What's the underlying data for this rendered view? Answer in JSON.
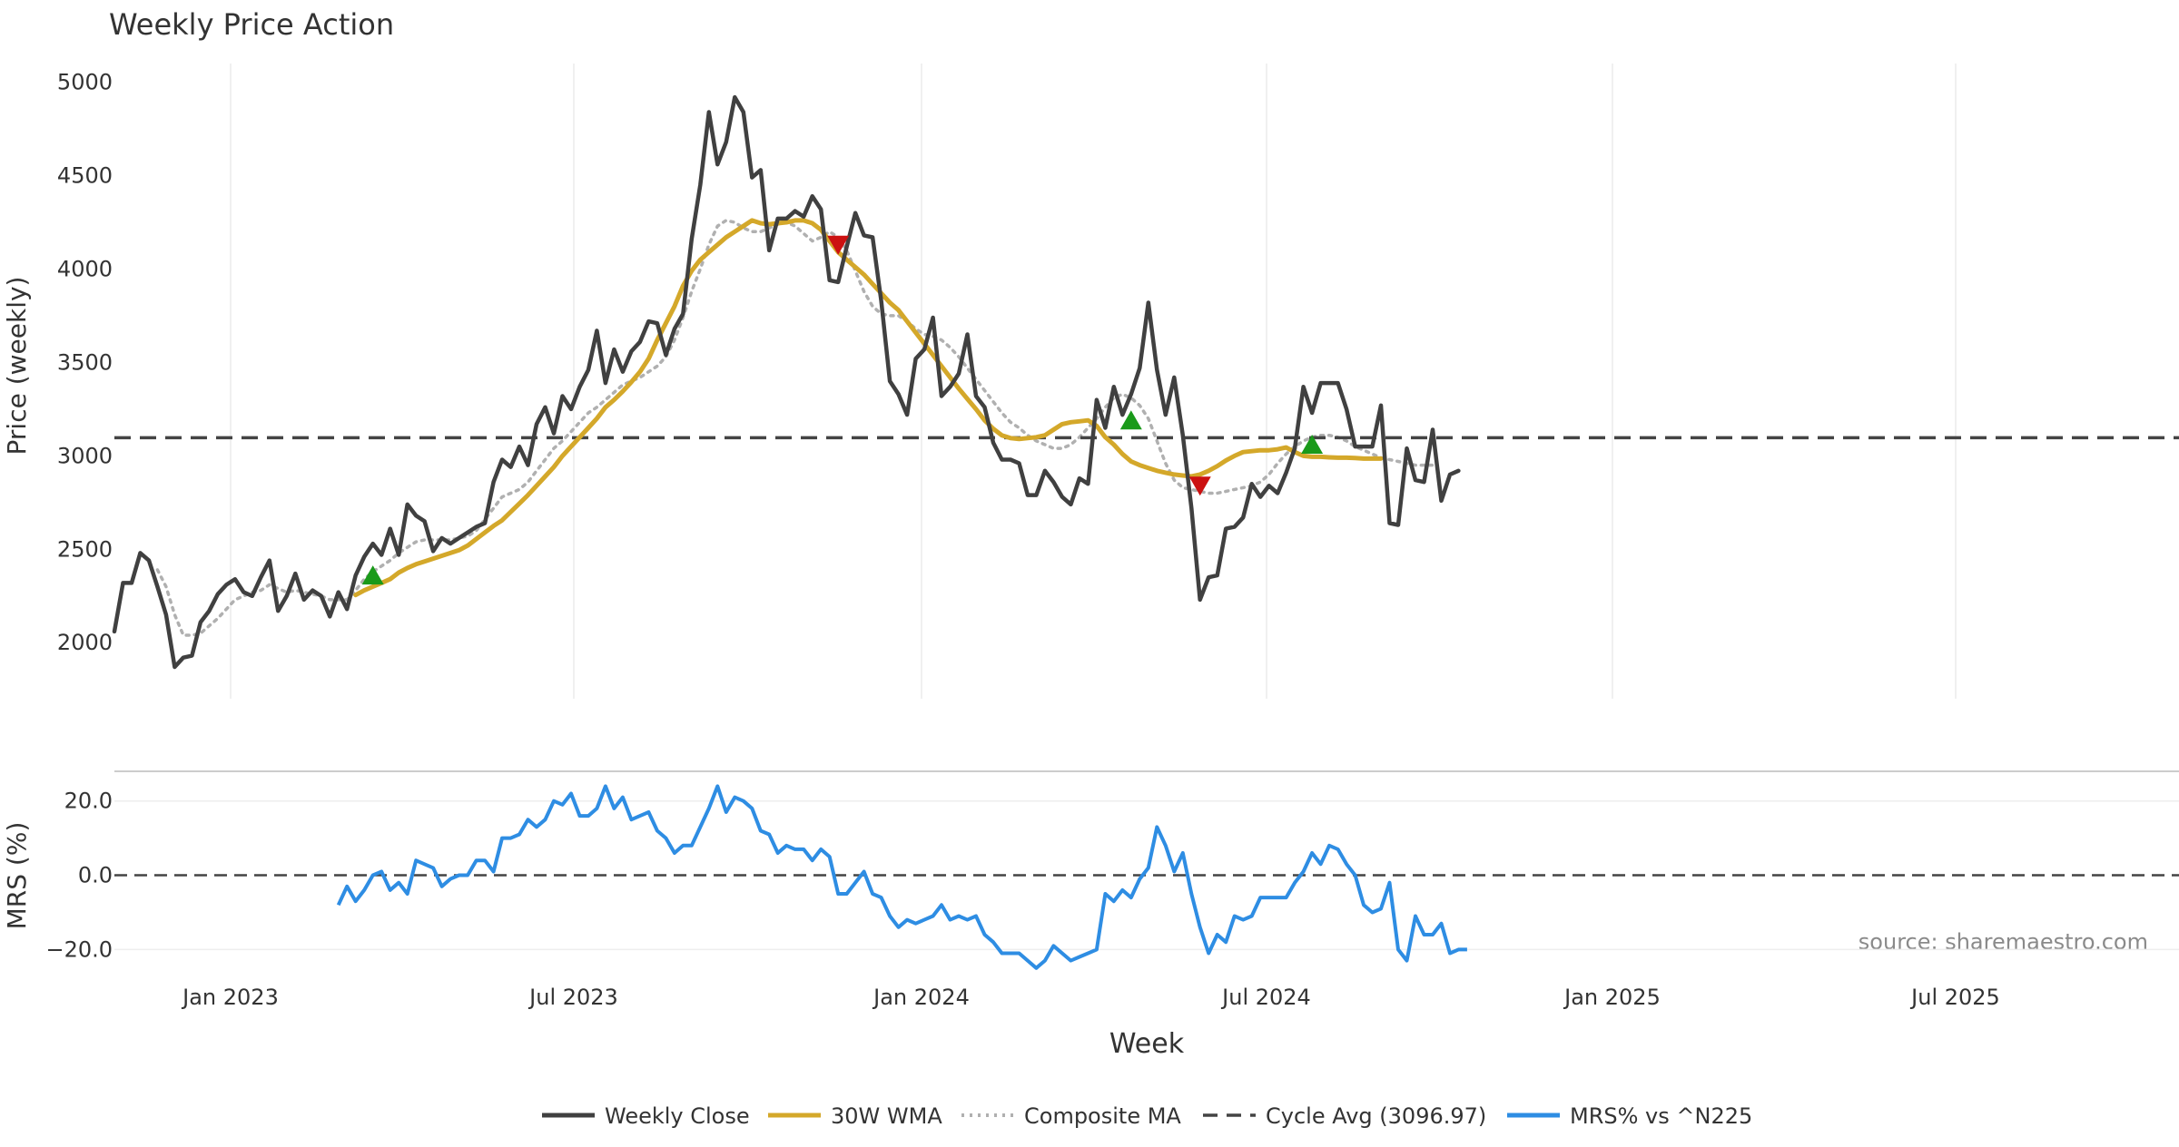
{
  "chart_data": {
    "type": "line",
    "title": "Weekly Price Action",
    "xlabel": "Week",
    "source_text": "source: sharemaestro.com",
    "x_ticks": [
      "Jan 2023",
      "Jul 2023",
      "Jan 2024",
      "Jul 2024",
      "Jan 2025",
      "Jul 2025"
    ],
    "price_panel": {
      "ylabel": "Price (weekly)",
      "ylim": [
        1700,
        5100
      ],
      "yticks": [
        "2000",
        "2500",
        "3000",
        "3500",
        "4000",
        "4500",
        "5000"
      ],
      "grid_x": true,
      "cycle_avg": 3096.97
    },
    "mrs_panel": {
      "ylabel": "MRS (%)",
      "ylim": [
        -27,
        28
      ],
      "yticks": [
        "20.0",
        "0.0",
        "−20.0"
      ]
    },
    "series": [
      {
        "name": "Weekly Close",
        "color": "#404040",
        "style": "solid",
        "values": [
          2060,
          2320,
          2320,
          2480,
          2440,
          2300,
          2150,
          1870,
          1920,
          1930,
          2110,
          2170,
          2260,
          2310,
          2340,
          2270,
          2250,
          2350,
          2440,
          2170,
          2250,
          2370,
          2230,
          2280,
          2250,
          2140,
          2270,
          2180,
          2360,
          2460,
          2530,
          2470,
          2610,
          2470,
          2740,
          2680,
          2650,
          2490,
          2560,
          2530,
          2560,
          2590,
          2620,
          2640,
          2860,
          2980,
          2940,
          3050,
          2950,
          3170,
          3260,
          3120,
          3320,
          3250,
          3370,
          3460,
          3670,
          3390,
          3570,
          3450,
          3560,
          3610,
          3720,
          3710,
          3540,
          3680,
          3760,
          4160,
          4450,
          4840,
          4560,
          4680,
          4920,
          4840,
          4490,
          4530,
          4100,
          4270,
          4270,
          4310,
          4280,
          4390,
          4320,
          3940,
          3930,
          4120,
          4300,
          4180,
          4170,
          3830,
          3400,
          3330,
          3220,
          3520,
          3570,
          3740,
          3320,
          3370,
          3440,
          3650,
          3320,
          3260,
          3070,
          2980,
          2980,
          2960,
          2790,
          2790,
          2920,
          2860,
          2780,
          2740,
          2880,
          2850,
          3300,
          3150,
          3370,
          3220,
          3330,
          3470,
          3820,
          3460,
          3220,
          3420,
          3110,
          2720,
          2230,
          2350,
          2360,
          2610,
          2620,
          2670,
          2850,
          2780,
          2840,
          2800,
          2910,
          3040,
          3370,
          3230,
          3390,
          3390,
          3390,
          3250,
          3050,
          3050,
          3050,
          3270,
          2640,
          2630,
          3040,
          2870,
          2860,
          3140,
          2760,
          2900,
          2920
        ]
      },
      {
        "name": "30W WMA",
        "color": "#d4a82a",
        "style": "solid",
        "values": [
          null,
          null,
          null,
          null,
          null,
          null,
          null,
          null,
          null,
          null,
          null,
          null,
          null,
          null,
          null,
          null,
          null,
          null,
          null,
          null,
          null,
          null,
          null,
          null,
          null,
          null,
          null,
          null,
          2255,
          2280,
          2300,
          2320,
          2340,
          2375,
          2400,
          2420,
          2435,
          2450,
          2465,
          2480,
          2495,
          2520,
          2555,
          2590,
          2625,
          2655,
          2700,
          2745,
          2790,
          2840,
          2890,
          2940,
          3000,
          3050,
          3100,
          3150,
          3200,
          3260,
          3300,
          3345,
          3395,
          3450,
          3520,
          3620,
          3710,
          3800,
          3910,
          3990,
          4050,
          4090,
          4130,
          4170,
          4200,
          4230,
          4260,
          4245,
          4240,
          4245,
          4250,
          4260,
          4260,
          4245,
          4210,
          4150,
          4090,
          4050,
          4010,
          3970,
          3920,
          3870,
          3820,
          3780,
          3720,
          3660,
          3600,
          3540,
          3480,
          3420,
          3360,
          3305,
          3250,
          3190,
          3145,
          3110,
          3095,
          3090,
          3095,
          3100,
          3110,
          3140,
          3170,
          3180,
          3185,
          3190,
          3160,
          3100,
          3060,
          3010,
          2970,
          2950,
          2935,
          2920,
          2910,
          2900,
          2895,
          2890,
          2900,
          2920,
          2945,
          2975,
          3000,
          3020,
          3025,
          3030,
          3030,
          3035,
          3045,
          3020,
          3000,
          2995,
          2995,
          2992,
          2990,
          2990,
          2988,
          2985,
          2985,
          2985
        ]
      },
      {
        "name": "Composite MA",
        "color": "#b0b0b0",
        "style": "dotted",
        "values": [
          null,
          null,
          null,
          null,
          null,
          2390,
          2300,
          2150,
          2040,
          2040,
          2050,
          2090,
          2130,
          2180,
          2230,
          2250,
          2270,
          2280,
          2310,
          2290,
          2270,
          2280,
          2270,
          2260,
          2250,
          2230,
          2230,
          2230,
          2280,
          2340,
          2380,
          2410,
          2440,
          2480,
          2510,
          2540,
          2550,
          2550,
          2550,
          2550,
          2560,
          2570,
          2600,
          2660,
          2720,
          2780,
          2800,
          2820,
          2860,
          2920,
          2980,
          3040,
          3080,
          3130,
          3180,
          3230,
          3260,
          3300,
          3340,
          3380,
          3400,
          3420,
          3450,
          3480,
          3530,
          3620,
          3740,
          3880,
          4000,
          4130,
          4230,
          4260,
          4250,
          4220,
          4200,
          4200,
          4220,
          4240,
          4250,
          4230,
          4190,
          4150,
          4170,
          4200,
          4170,
          4100,
          3990,
          3880,
          3800,
          3760,
          3750,
          3750,
          3720,
          3680,
          3650,
          3640,
          3620,
          3580,
          3530,
          3470,
          3410,
          3350,
          3290,
          3230,
          3180,
          3150,
          3110,
          3080,
          3060,
          3040,
          3040,
          3060,
          3100,
          3150,
          3200,
          3260,
          3310,
          3330,
          3310,
          3270,
          3200,
          3080,
          2960,
          2870,
          2830,
          2820,
          2810,
          2800,
          2800,
          2810,
          2820,
          2830,
          2840,
          2860,
          2900,
          2960,
          3010,
          3050,
          3080,
          3100,
          3110,
          3110,
          3100,
          3080,
          3050,
          3030,
          3010,
          2990,
          2980,
          2970,
          2960,
          2950,
          2950,
          2950
        ]
      },
      {
        "name": "Cycle Avg (3096.97)",
        "color": "#444444",
        "style": "dashed",
        "value": 3096.97
      },
      {
        "name": "MRS% vs ^N225",
        "color": "#2e8de3",
        "style": "solid",
        "values": [
          null,
          null,
          null,
          null,
          null,
          null,
          null,
          null,
          null,
          null,
          null,
          null,
          null,
          null,
          null,
          null,
          null,
          null,
          null,
          null,
          null,
          null,
          null,
          null,
          null,
          null,
          -8,
          -3,
          -7,
          -4,
          0,
          1,
          -4,
          -2,
          -5,
          4,
          3,
          2,
          -3,
          -1,
          0,
          0,
          4,
          4,
          1,
          10,
          10,
          11,
          15,
          13,
          15,
          20,
          19,
          22,
          16,
          16,
          18,
          24,
          18,
          21,
          15,
          16,
          17,
          12,
          10,
          6,
          8,
          8,
          13,
          18,
          24,
          17,
          21,
          20,
          18,
          12,
          11,
          6,
          8,
          7,
          7,
          4,
          7,
          5,
          -5,
          -5,
          -2,
          1,
          -5,
          -6,
          -11,
          -14,
          -12,
          -13,
          -12,
          -11,
          -8,
          -12,
          -11,
          -12,
          -11,
          -16,
          -18,
          -21,
          -21,
          -21,
          -23,
          -25,
          -23,
          -19,
          -21,
          -23,
          -22,
          -21,
          -20,
          -5,
          -7,
          -4,
          -6,
          -1,
          2,
          13,
          8,
          1,
          6,
          -5,
          -14,
          -21,
          -16,
          -18,
          -11,
          -12,
          -11,
          -6,
          -6,
          -6,
          -6,
          -2,
          1,
          6,
          3,
          8,
          7,
          3,
          0,
          -8,
          -10,
          -9,
          -2,
          -20,
          -23,
          -11,
          -16,
          -16,
          -13,
          -21,
          -20,
          -20
        ]
      }
    ],
    "signals": {
      "buy": [
        {
          "week": 30,
          "value": 2360
        },
        {
          "week": 118,
          "value": 3190
        },
        {
          "week": 139,
          "value": 3060
        }
      ],
      "sell": [
        {
          "week": 84,
          "value": 4130
        },
        {
          "week": 126,
          "value": 2840
        }
      ],
      "buy_color": "#1a9a1a",
      "sell_color": "#cc1111"
    },
    "legend": {
      "placement": "bottom-center",
      "items": [
        "Weekly Close",
        "30W WMA",
        "Composite MA",
        "Cycle Avg (3096.97)",
        "MRS% vs ^N225"
      ]
    }
  }
}
